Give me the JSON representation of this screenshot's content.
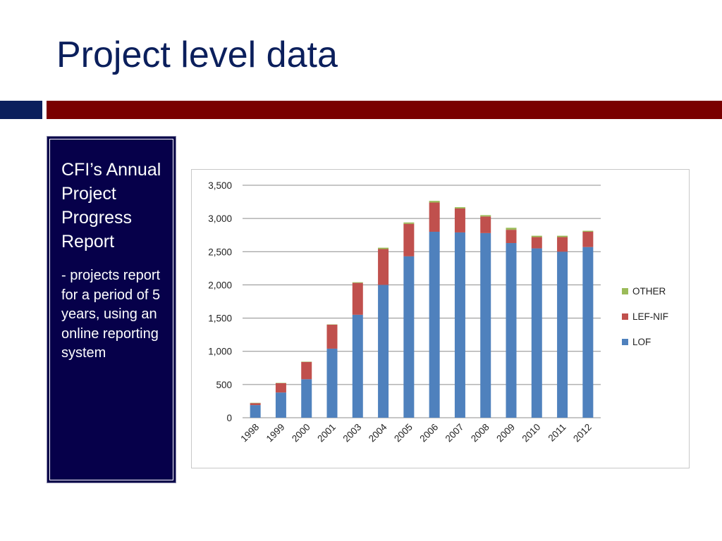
{
  "slide": {
    "title": "Project level data",
    "colors": {
      "title": "#0b1f5c",
      "rule_left": "#0b1f5c",
      "rule_right": "#7a0000",
      "panel_bg": "#06004a"
    }
  },
  "side_panel": {
    "heading": "CFI’s Annual Project Progress Report",
    "body": "- projects report for a period of 5 years, using an online reporting system"
  },
  "chart_data": {
    "type": "bar",
    "stacked": true,
    "categories": [
      "1998",
      "1999",
      "2000",
      "2001",
      "2003",
      "2004",
      "2005",
      "2006",
      "2007",
      "2008",
      "2009",
      "2010",
      "2011",
      "2012"
    ],
    "series": [
      {
        "name": "LOF",
        "color": "#4f81bd",
        "values": [
          190,
          380,
          580,
          1040,
          1550,
          2000,
          2430,
          2800,
          2790,
          2780,
          2630,
          2550,
          2500,
          2570
        ]
      },
      {
        "name": "LEF-NIF",
        "color": "#c0504d",
        "values": [
          30,
          140,
          260,
          360,
          480,
          540,
          490,
          440,
          360,
          250,
          200,
          170,
          220,
          230
        ]
      },
      {
        "name": "OTHER",
        "color": "#9bbb59",
        "values": [
          5,
          5,
          5,
          5,
          10,
          20,
          20,
          25,
          20,
          20,
          30,
          20,
          20,
          15
        ]
      }
    ],
    "yticks": [
      "0",
      "500",
      "1,000",
      "1,500",
      "2,000",
      "2,500",
      "3,000",
      "3,500"
    ],
    "ylim": [
      0,
      3500
    ],
    "grid": true,
    "legend_position": "right"
  }
}
